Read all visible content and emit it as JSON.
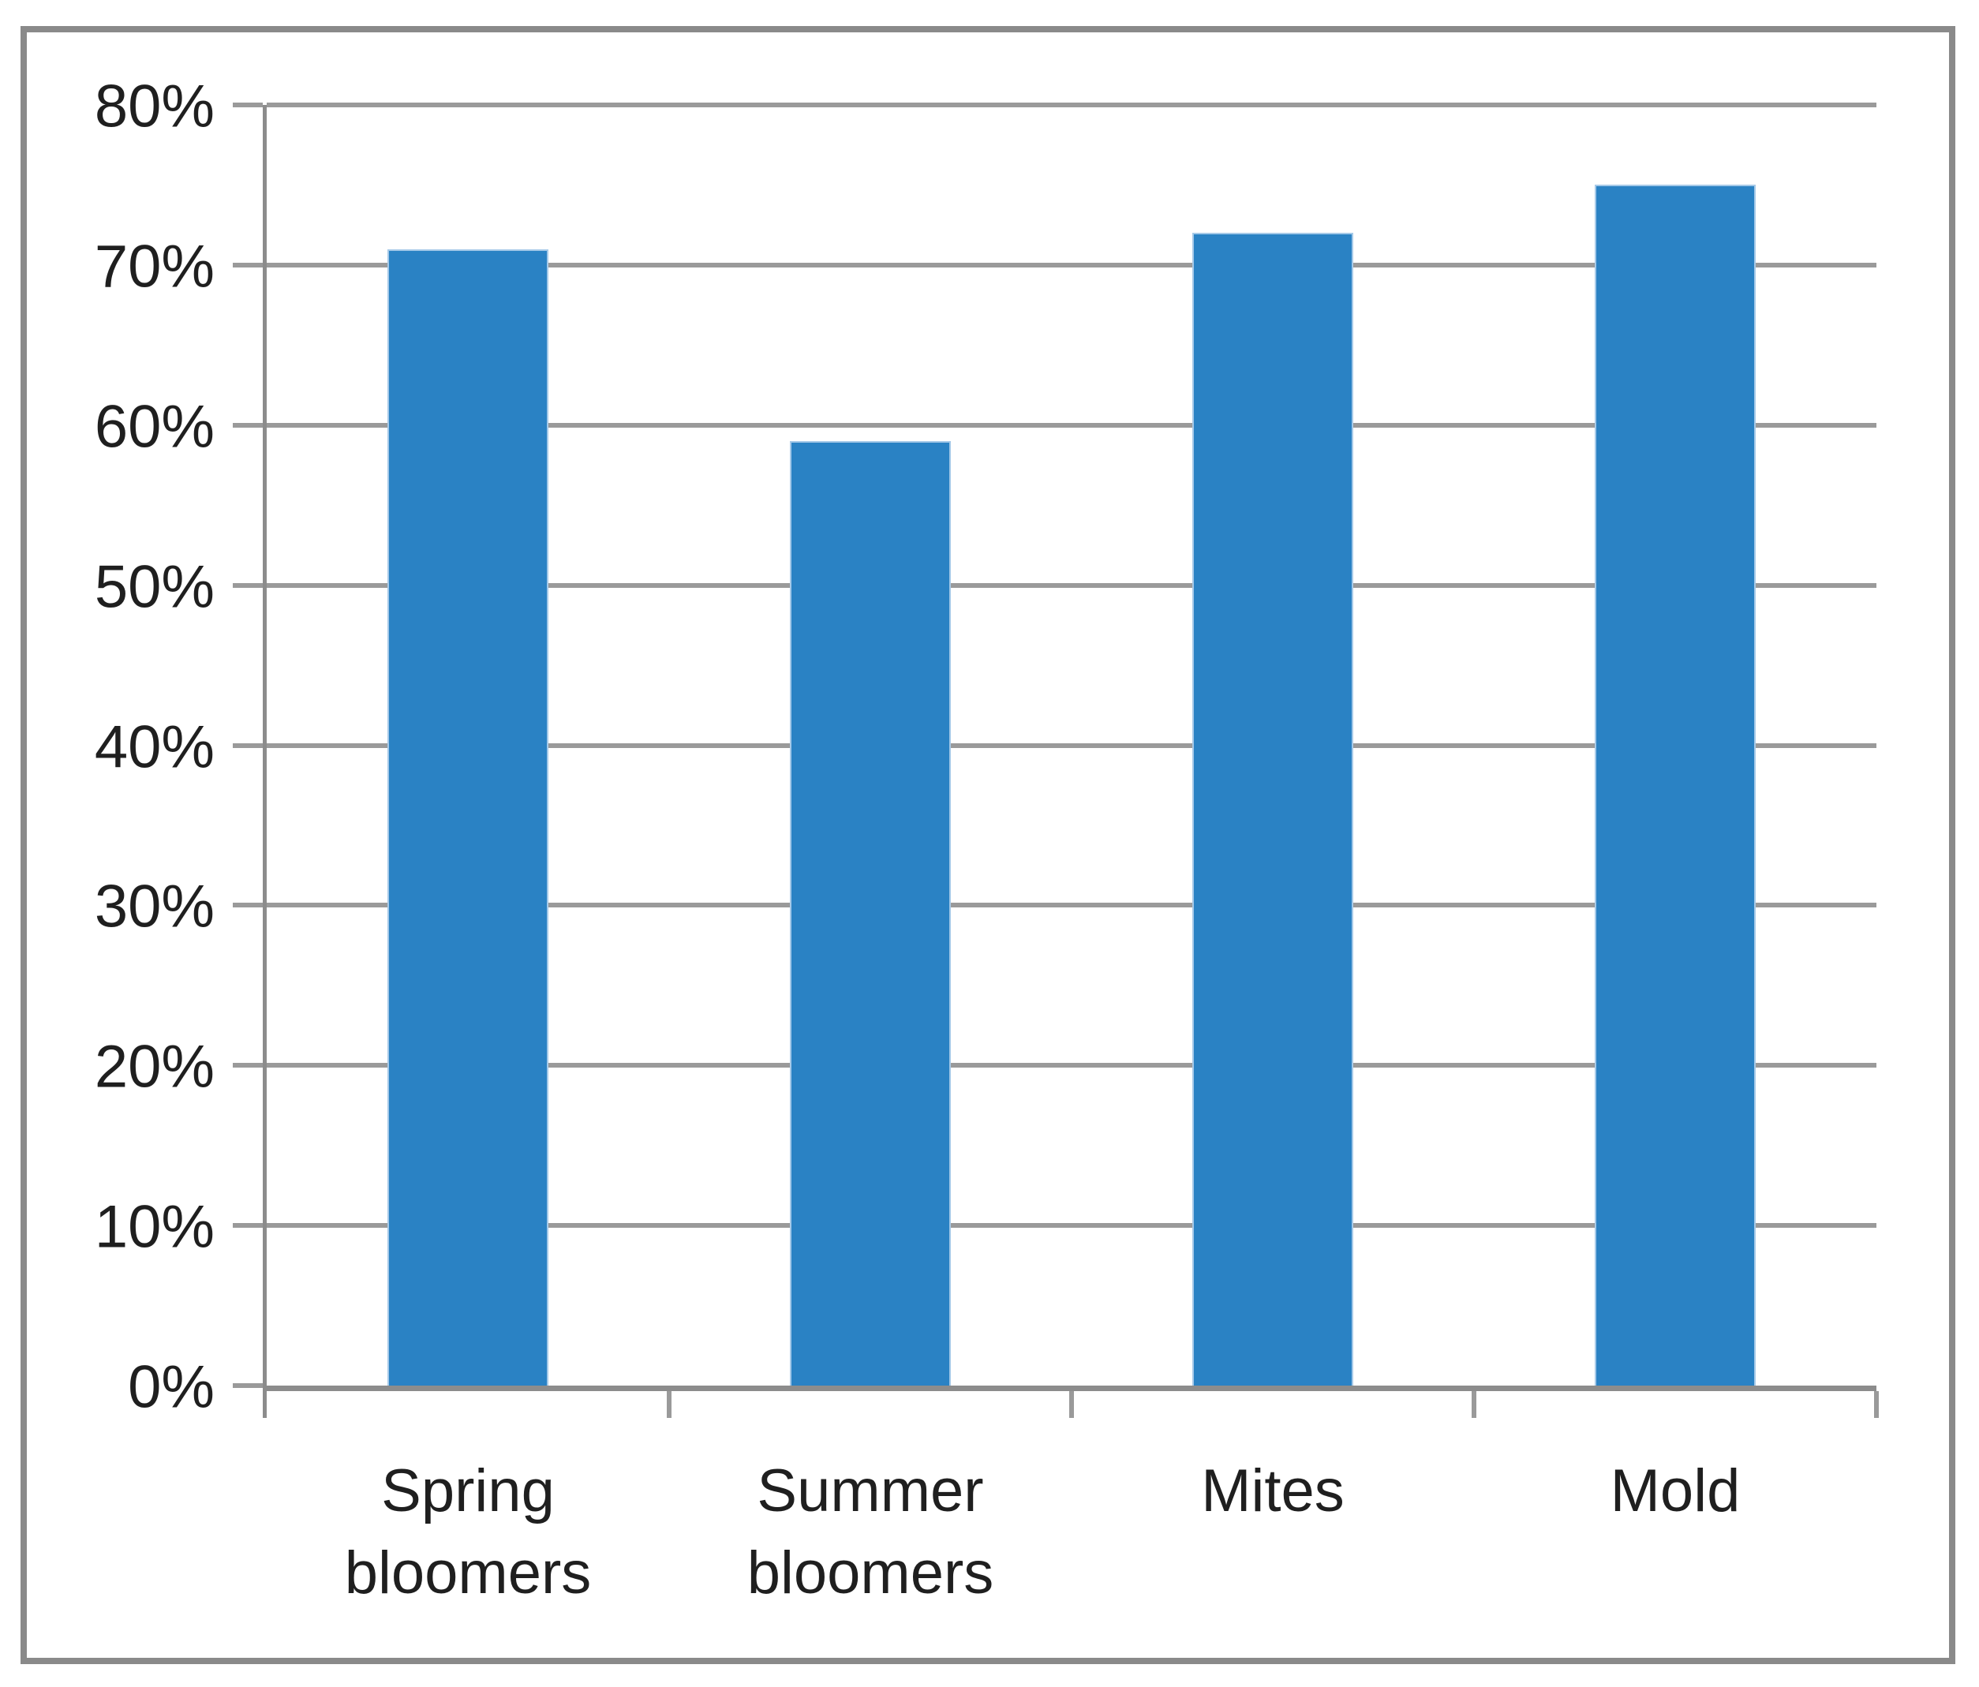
{
  "chart_data": {
    "type": "bar",
    "title": "",
    "xlabel": "",
    "ylabel": "",
    "categories": [
      "Spring bloomers",
      "Summer bloomers",
      "Mites",
      "Mold"
    ],
    "values": [
      71,
      59,
      72,
      75
    ],
    "value_unit": "%",
    "series": [
      {
        "name": "",
        "values": [
          71,
          59,
          72,
          75
        ]
      }
    ],
    "ylim": [
      0,
      80
    ],
    "ytick_step": 10,
    "ytick_labels": [
      "0%",
      "10%",
      "20%",
      "30%",
      "40%",
      "50%",
      "60%",
      "70%",
      "80%"
    ],
    "grid": true,
    "legend_position": "none",
    "colors": {
      "bar_fill": "#2A82C4",
      "bar_edge": "#A5C9E8",
      "gridline": "#9A9A9A",
      "axis": "#8C8C8C",
      "outer_border": "#8A8A8A",
      "text": "#1F1F1F",
      "background": "#FFFFFF"
    }
  }
}
